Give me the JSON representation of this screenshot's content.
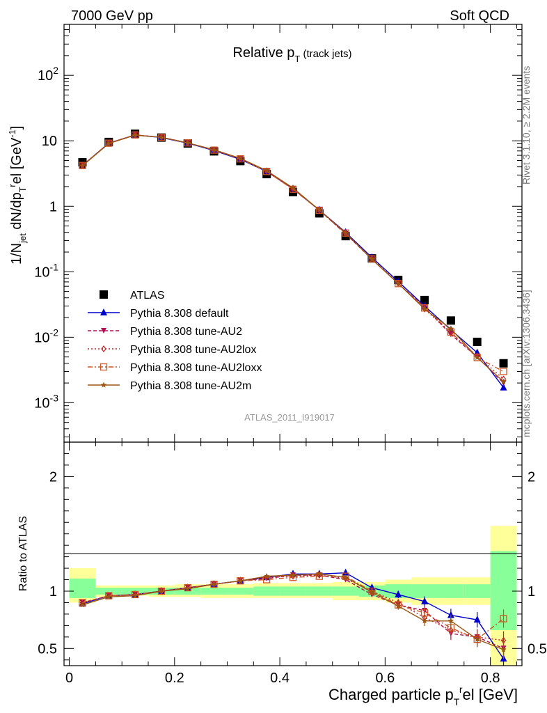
{
  "header": {
    "left": "7000 GeV pp",
    "right": "Soft QCD"
  },
  "side": {
    "rivet": "Rivet 3.1.10, ≥ 2.2M events",
    "mcplots": "mcplots.cern.ch [arXiv:1306.3436]"
  },
  "watermark": "ATLAS_2011_I919017",
  "chart_data": [
    {
      "type": "line",
      "panel": "main",
      "title": "Relative p_T (track jets)",
      "ylabel": "1/N_jet dN/dp_T^rel [GeV^-1]",
      "yscale": "log",
      "ylim": [
        0.00025,
        600
      ],
      "xlim": [
        -0.01,
        0.86
      ],
      "grid": false,
      "legend_position": "lower-left",
      "ytick_labels": [
        "10^-3",
        "10^-2",
        "10^-1",
        "1",
        "10",
        "10^2"
      ],
      "x": [
        0.025,
        0.075,
        0.125,
        0.175,
        0.225,
        0.275,
        0.325,
        0.375,
        0.425,
        0.475,
        0.525,
        0.575,
        0.625,
        0.675,
        0.725,
        0.775,
        0.825
      ],
      "series": [
        {
          "name": "ATLAS",
          "color": "#000000",
          "marker": "square",
          "dash": "none",
          "values": [
            4.7,
            9.6,
            12.8,
            11.2,
            9.1,
            6.9,
            4.9,
            3.1,
            1.65,
            0.78,
            0.35,
            0.16,
            0.075,
            0.037,
            0.018,
            0.0085,
            0.004
          ]
        },
        {
          "name": "Pythia 8.308 default",
          "color": "#0000cc",
          "marker": "triangle-up",
          "dash": "none",
          "values": [
            4.2,
            9.2,
            12.3,
            11.2,
            9.2,
            7.1,
            5.2,
            3.4,
            1.85,
            0.88,
            0.4,
            0.165,
            0.071,
            0.03,
            0.013,
            0.0058,
            0.0017
          ]
        },
        {
          "name": "Pythia 8.308 tune-AU2",
          "color": "#aa1155",
          "marker": "triangle-down",
          "dash": "5,3",
          "values": [
            4.2,
            9.2,
            12.3,
            11.3,
            9.3,
            7.2,
            5.3,
            3.4,
            1.85,
            0.87,
            0.38,
            0.155,
            0.066,
            0.029,
            0.011,
            0.005,
            0.002
          ]
        },
        {
          "name": "Pythia 8.308 tune-AU2lox",
          "color": "#bb2222",
          "marker": "diamond-open",
          "dash": "2,3",
          "values": [
            4.2,
            9.2,
            12.3,
            11.3,
            9.3,
            7.2,
            5.3,
            3.45,
            1.85,
            0.87,
            0.38,
            0.16,
            0.067,
            0.027,
            0.0115,
            0.0052,
            0.0023
          ]
        },
        {
          "name": "Pythia 8.308 tune-AU2loxx",
          "color": "#cc5522",
          "marker": "square-open",
          "dash": "7,3,2,3",
          "values": [
            4.2,
            9.2,
            12.3,
            11.3,
            9.3,
            7.2,
            5.3,
            3.4,
            1.82,
            0.87,
            0.39,
            0.158,
            0.066,
            0.028,
            0.012,
            0.0049,
            0.003
          ]
        },
        {
          "name": "Pythia 8.308 tune-AU2m",
          "color": "#995511",
          "marker": "star",
          "dash": "none",
          "values": [
            4.15,
            9.1,
            12.2,
            11.3,
            9.3,
            7.3,
            5.4,
            3.5,
            1.9,
            0.88,
            0.39,
            0.155,
            0.066,
            0.027,
            0.0135,
            0.0049,
            0.0021
          ]
        }
      ]
    },
    {
      "type": "line",
      "panel": "ratio",
      "xlabel": "Charged particle p_T^rel [GeV]",
      "ylabel": "Ratio to ATLAS",
      "ylim": [
        0.35,
        2.3
      ],
      "xlim": [
        -0.01,
        0.86
      ],
      "xticks": [
        "0",
        "0.2",
        "0.4",
        "0.6",
        "0.8"
      ],
      "yticks": [
        "0.5",
        "1",
        "2"
      ],
      "bins": [
        [
          0.0,
          0.05
        ],
        [
          0.05,
          0.1
        ],
        [
          0.1,
          0.15
        ],
        [
          0.15,
          0.2
        ],
        [
          0.2,
          0.25
        ],
        [
          0.25,
          0.3
        ],
        [
          0.3,
          0.35
        ],
        [
          0.35,
          0.4
        ],
        [
          0.4,
          0.45
        ],
        [
          0.45,
          0.5
        ],
        [
          0.5,
          0.55
        ],
        [
          0.55,
          0.6
        ],
        [
          0.6,
          0.65
        ],
        [
          0.65,
          0.7
        ],
        [
          0.7,
          0.75
        ],
        [
          0.75,
          0.8
        ],
        [
          0.8,
          0.85
        ]
      ],
      "band_yellow": [
        [
          0.9,
          1.2
        ],
        [
          0.95,
          1.05
        ],
        [
          0.96,
          1.05
        ],
        [
          0.95,
          1.05
        ],
        [
          0.95,
          1.06
        ],
        [
          0.94,
          1.06
        ],
        [
          0.94,
          1.06
        ],
        [
          0.94,
          1.07
        ],
        [
          0.94,
          1.07
        ],
        [
          0.94,
          1.07
        ],
        [
          0.92,
          1.08
        ],
        [
          0.92,
          1.08
        ],
        [
          0.9,
          1.1
        ],
        [
          0.88,
          1.12
        ],
        [
          0.88,
          1.12
        ],
        [
          0.88,
          1.12
        ],
        [
          0.35,
          1.57
        ]
      ],
      "band_green": [
        [
          0.94,
          1.11
        ],
        [
          0.97,
          1.03
        ],
        [
          0.97,
          1.03
        ],
        [
          0.97,
          1.03
        ],
        [
          0.97,
          1.03
        ],
        [
          0.97,
          1.03
        ],
        [
          0.97,
          1.03
        ],
        [
          0.96,
          1.04
        ],
        [
          0.96,
          1.04
        ],
        [
          0.96,
          1.04
        ],
        [
          0.96,
          1.04
        ],
        [
          0.95,
          1.05
        ],
        [
          0.94,
          1.06
        ],
        [
          0.94,
          1.06
        ],
        [
          0.94,
          1.06
        ],
        [
          0.94,
          1.06
        ],
        [
          0.66,
          1.35
        ]
      ],
      "series": [
        {
          "name": "Pythia 8.308 default",
          "values": [
            0.89,
            0.96,
            0.97,
            1.0,
            1.03,
            1.06,
            1.09,
            1.12,
            1.15,
            1.15,
            1.16,
            1.03,
            0.97,
            0.91,
            0.79,
            0.75,
            0.41
          ]
        },
        {
          "name": "Pythia 8.308 tune-AU2",
          "values": [
            0.9,
            0.96,
            0.97,
            1.0,
            1.03,
            1.06,
            1.09,
            1.11,
            1.14,
            1.14,
            1.1,
            0.97,
            0.88,
            0.83,
            0.63,
            0.6,
            0.5
          ]
        },
        {
          "name": "Pythia 8.308 tune-AU2lox",
          "values": [
            0.9,
            0.96,
            0.97,
            1.0,
            1.03,
            1.06,
            1.09,
            1.12,
            1.13,
            1.14,
            1.11,
            1.0,
            0.9,
            0.77,
            0.66,
            0.6,
            0.57
          ]
        },
        {
          "name": "Pythia 8.308 tune-AU2loxx",
          "values": [
            0.9,
            0.96,
            0.97,
            1.0,
            1.03,
            1.06,
            1.09,
            1.1,
            1.12,
            1.13,
            1.13,
            1.0,
            0.88,
            0.81,
            0.68,
            0.58,
            0.76
          ]
        },
        {
          "name": "Pythia 8.308 tune-AU2m",
          "values": [
            0.88,
            0.95,
            0.96,
            1.0,
            1.02,
            1.06,
            1.09,
            1.13,
            1.14,
            1.15,
            1.12,
            0.99,
            0.87,
            0.74,
            0.74,
            0.58,
            0.49
          ]
        }
      ]
    }
  ]
}
